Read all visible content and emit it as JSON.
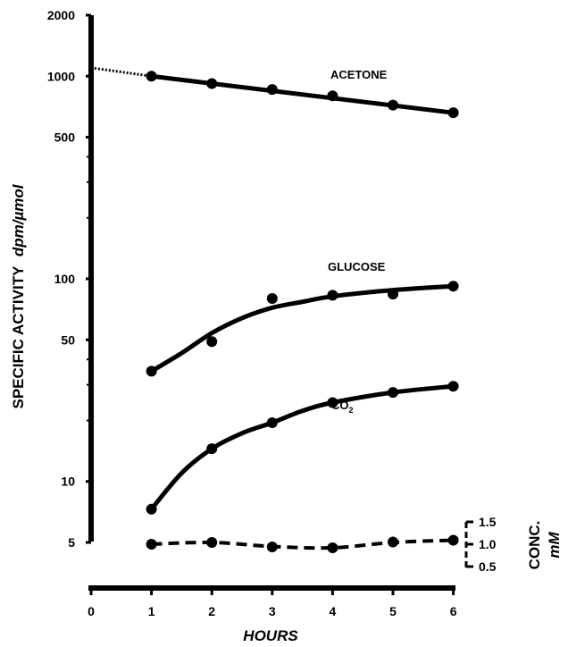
{
  "chart_data": {
    "type": "line",
    "y_scale": "log",
    "ylim": [
      5,
      2000
    ],
    "xlim": [
      0,
      6
    ],
    "ylabel": "SPECIFIC ACTIVITY",
    "ylabel_unit": "dpm/µmol",
    "xlabel": "HOURS",
    "x_ticks": [
      0,
      1,
      2,
      3,
      4,
      5,
      6
    ],
    "y_ticks": [
      5,
      10,
      50,
      100,
      500,
      1000,
      2000
    ],
    "secondary_axis": {
      "label": "CONC.",
      "unit": "mM",
      "ticks": [
        "1.5",
        "1.0",
        "0.5"
      ]
    },
    "series": [
      {
        "name": "ACETONE",
        "style": "solid",
        "extrapolation": {
          "x": [
            0,
            1
          ],
          "y": [
            1100,
            1000
          ],
          "style": "dotted"
        },
        "points": {
          "x": [
            1,
            2,
            3,
            4,
            5,
            6
          ],
          "y": [
            1000,
            920,
            860,
            800,
            720,
            660
          ]
        },
        "fit": {
          "x": [
            1,
            6
          ],
          "y": [
            1000,
            660
          ]
        }
      },
      {
        "name": "GLUCOSE",
        "style": "solid",
        "points": {
          "x": [
            1,
            2,
            3,
            4,
            5,
            6
          ],
          "y": [
            35,
            49,
            80,
            83,
            84,
            92
          ]
        },
        "fit": {
          "x": [
            1,
            1.5,
            2,
            2.5,
            3,
            3.5,
            4,
            5,
            6
          ],
          "y": [
            35,
            43,
            54,
            64,
            72,
            77,
            82,
            88,
            92
          ]
        }
      },
      {
        "name": "CO",
        "name_subscript": "2",
        "style": "solid",
        "points": {
          "x": [
            1,
            2,
            3,
            4,
            5,
            6
          ],
          "y": [
            7.3,
            14.5,
            19.5,
            24.5,
            27.5,
            29.5
          ]
        },
        "fit": {
          "x": [
            1,
            1.5,
            2,
            2.5,
            3,
            3.5,
            4,
            5,
            6
          ],
          "y": [
            7.3,
            11,
            14.5,
            17.3,
            19.5,
            22.3,
            24.5,
            27.5,
            29.5
          ]
        }
      },
      {
        "name": "CONC.",
        "axis": "secondary",
        "style": "dashed",
        "points": {
          "x": [
            1,
            2,
            3,
            4,
            5,
            6
          ],
          "y": [
            1.0,
            1.04,
            0.94,
            0.92,
            1.05,
            1.09
          ]
        },
        "fit": {
          "x": [
            1,
            2,
            3,
            4,
            5,
            6
          ],
          "y": [
            1.0,
            1.04,
            0.95,
            0.92,
            1.04,
            1.09
          ]
        }
      }
    ]
  }
}
